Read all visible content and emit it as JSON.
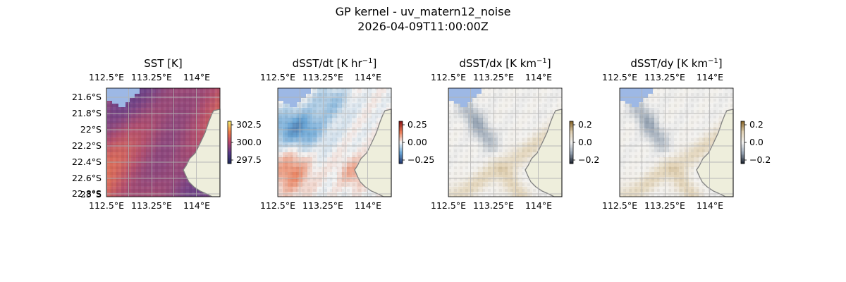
{
  "figure": {
    "title_line1": "GP kernel - uv_matern12_noise",
    "title_line2": "2026-04-09T11:00:00Z"
  },
  "chart_data": [
    {
      "type": "heatmap",
      "title": "SST [K]",
      "x_ticks": [
        "112.5°E",
        "113.25°E",
        "114°E"
      ],
      "y_ticks": [
        "21.6°S",
        "21.8°S",
        "22°S",
        "22.2°S",
        "22.4°S",
        "22.6°S",
        "22.8°S",
        "23°S"
      ],
      "show_y_ticks": true,
      "colormap": "thermal",
      "colorbar": {
        "ticks": [
          "302.5",
          "300.0",
          "297.5"
        ],
        "colors": [
          "#f6e86c",
          "#ef7a4a",
          "#b9466f",
          "#5a3b8a",
          "#1f2a5a"
        ]
      },
      "land_color": "#eeeedc",
      "mask_color": "#9db8e5",
      "grid": true
    },
    {
      "type": "heatmap",
      "title": "dSST/dt [K hr",
      "title_sup": "−1",
      "title_end": "]",
      "x_ticks": [
        "112.5°E",
        "113.25°E",
        "114°E"
      ],
      "show_y_ticks": false,
      "colormap": "diverging",
      "colorbar": {
        "ticks": [
          "0.25",
          "0.00",
          "−0.25"
        ],
        "colors": [
          "#8e1a1a",
          "#e97a55",
          "#f3f3f3",
          "#6aa6d6",
          "#23386f"
        ]
      },
      "land_color": "#eeeedc",
      "mask_color": "#9db8e5",
      "grid": true
    },
    {
      "type": "heatmap",
      "title": "dSST/dx [K km",
      "title_sup": "−1",
      "title_end": "]",
      "x_ticks": [
        "112.5°E",
        "113.25°E",
        "114°E"
      ],
      "show_y_ticks": false,
      "colormap": "gradient",
      "colorbar": {
        "ticks": [
          "0.2",
          "0.0",
          "−0.2"
        ],
        "colors": [
          "#8c6a2d",
          "#e2d3b6",
          "#f3f2f0",
          "#9aa7b6",
          "#222a36"
        ]
      },
      "land_color": "#eeeedc",
      "mask_color": "#9db8e5",
      "grid": true
    },
    {
      "type": "heatmap",
      "title": "dSST/dy [K km",
      "title_sup": "−1",
      "title_end": "]",
      "x_ticks": [
        "112.5°E",
        "113.25°E",
        "114°E"
      ],
      "show_y_ticks": false,
      "colormap": "gradient",
      "colorbar": {
        "ticks": [
          "0.2",
          "0.0",
          "−0.2"
        ],
        "colors": [
          "#8c6a2d",
          "#e2d3b6",
          "#f3f2f0",
          "#9aa7b6",
          "#222a36"
        ]
      },
      "land_color": "#eeeedc",
      "mask_color": "#9db8e5",
      "grid": true
    }
  ]
}
